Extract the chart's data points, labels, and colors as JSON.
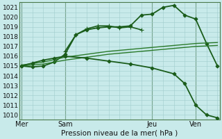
{
  "xlabel": "Pression niveau de la mer( hPa )",
  "background_color": "#c8eaea",
  "grid_color": "#a0cccc",
  "ylim": [
    1009.5,
    1021.5
  ],
  "xlim": [
    -0.05,
    4.55
  ],
  "yticks": [
    1010,
    1011,
    1012,
    1013,
    1014,
    1015,
    1016,
    1017,
    1018,
    1019,
    1020,
    1021
  ],
  "xtick_labels": [
    "Mer",
    "Sam",
    "Jeu",
    "Ven"
  ],
  "xtick_positions": [
    0.0,
    1.0,
    3.0,
    4.0
  ],
  "vline_positions": [
    0.0,
    1.0,
    3.0,
    4.0
  ],
  "series": [
    {
      "x": [
        0.0,
        0.25,
        0.5,
        0.75,
        1.0,
        1.25,
        1.5,
        1.75,
        2.0,
        2.25,
        2.5,
        2.75,
        3.0,
        3.25,
        3.5,
        3.75,
        4.0,
        4.25,
        4.5
      ],
      "y": [
        1015.0,
        1014.9,
        1015.0,
        1015.4,
        1016.2,
        1018.2,
        1018.7,
        1018.9,
        1019.0,
        1019.0,
        1019.1,
        1020.2,
        1020.3,
        1021.0,
        1021.2,
        1020.2,
        1019.8,
        1017.3,
        1015.0
      ],
      "marker": "D",
      "markersize": 2.5,
      "linewidth": 1.3,
      "color": "#1a5c1a"
    },
    {
      "x": [
        1.0,
        1.25,
        1.5,
        1.75,
        2.0,
        2.25,
        2.5,
        2.75
      ],
      "y": [
        1016.5,
        1018.2,
        1018.8,
        1019.1,
        1019.1,
        1018.9,
        1019.0,
        1018.7
      ],
      "marker": "+",
      "markersize": 4,
      "linewidth": 1.2,
      "color": "#1a5c1a"
    },
    {
      "x": [
        0.0,
        0.5,
        1.0,
        1.5,
        2.0,
        2.5,
        3.0,
        3.5,
        4.0,
        4.5
      ],
      "y": [
        1015.1,
        1015.4,
        1015.9,
        1016.2,
        1016.5,
        1016.7,
        1016.9,
        1017.1,
        1017.3,
        1017.4
      ],
      "marker": null,
      "linewidth": 1.0,
      "color": "#2a7a2a"
    },
    {
      "x": [
        0.0,
        0.5,
        1.0,
        1.5,
        2.0,
        2.5,
        3.0,
        3.5,
        4.0,
        4.5
      ],
      "y": [
        1015.0,
        1015.2,
        1015.6,
        1015.9,
        1016.2,
        1016.4,
        1016.6,
        1016.8,
        1017.0,
        1017.1
      ],
      "marker": null,
      "linewidth": 1.0,
      "color": "#2a7a2a"
    },
    {
      "x": [
        0.0,
        0.25,
        0.5,
        0.75,
        1.0,
        1.5,
        2.0,
        2.5,
        3.0,
        3.5,
        3.75,
        4.0,
        4.25,
        4.5
      ],
      "y": [
        1015.0,
        1015.3,
        1015.6,
        1015.8,
        1016.0,
        1015.8,
        1015.5,
        1015.2,
        1014.8,
        1014.2,
        1013.2,
        1011.0,
        1010.0,
        1009.7
      ],
      "marker": "D",
      "markersize": 2.5,
      "linewidth": 1.3,
      "color": "#1a5c1a"
    }
  ]
}
